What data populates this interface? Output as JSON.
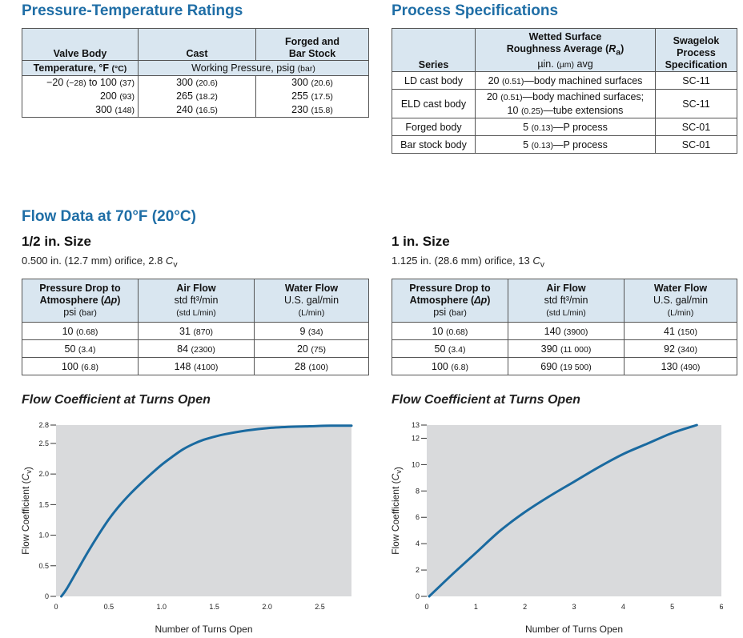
{
  "pt": {
    "title": "Pressure-Temperature Ratings",
    "h_valve": "Valve Body",
    "h_cast": "Cast",
    "h_forged1": "Forged and",
    "h_forged2": "Bar Stock",
    "h_temp": "Temperature, °F ",
    "h_temp_unit": "(°C)",
    "h_wp": "Working Pressure, psig ",
    "h_wp_unit": "(bar)",
    "rows": [
      {
        "t": "−20 ",
        "tu": "(−28)",
        "t2": " to 100 ",
        "t2u": "(37)",
        "c": "300 ",
        "cu": "(20.6)",
        "f": "300 ",
        "fu": "(20.6)"
      },
      {
        "t": "200 ",
        "tu": "(93)",
        "c": "265 ",
        "cu": "(18.2)",
        "f": "255 ",
        "fu": "(17.5)"
      },
      {
        "t": "300 ",
        "tu": "(148)",
        "c": "240 ",
        "cu": "(16.5)",
        "f": "230 ",
        "fu": "(15.8)"
      }
    ]
  },
  "ps": {
    "title": "Process Specifications",
    "h_series": "Series",
    "h_wetted1": "Wetted Surface",
    "h_wetted2a": "Roughness Average (",
    "h_wetted2b": "R",
    "h_wetted2c": "a",
    "h_wetted2d": ")",
    "h_wetted3a": "µin. ",
    "h_wetted3b": "(µm)",
    "h_wetted3c": " avg",
    "h_sw1": "Swagelok",
    "h_sw2": "Process",
    "h_sw3": "Specification",
    "rows": [
      {
        "series": "LD cast body",
        "a": "20 ",
        "au": "(0.51)",
        "b": "—body machined surfaces",
        "spec": "SC-11"
      },
      {
        "series": "ELD cast body",
        "a": "20 ",
        "au": "(0.51)",
        "b": "—body machined surfaces;",
        "c": "10 ",
        "cu": "(0.25)",
        "d": "—tube extensions",
        "spec": "SC-11"
      },
      {
        "series": "Forged body",
        "a": "5 ",
        "au": "(0.13)",
        "b": "—P process",
        "spec": "SC-01"
      },
      {
        "series": "Bar stock body",
        "a": "5 ",
        "au": "(0.13)",
        "b": "—P process",
        "spec": "SC-01"
      }
    ]
  },
  "flow": {
    "title": "Flow Data at 70°F (20°C)",
    "h_pd1": "Pressure Drop to",
    "h_pd2a": "Atmosphere (",
    "h_pd2b": "Δp",
    "h_pd2c": ")",
    "h_pd3a": "psi ",
    "h_pd3b": "(bar)",
    "h_air1": "Air Flow",
    "h_air2": "std ft³/min",
    "h_air3": "(std L/min)",
    "h_water1": "Water Flow",
    "h_water2": "U.S. gal/min",
    "h_water3": "(L/min)",
    "half": {
      "size": "1/2 in. Size",
      "orifice_a": "0.500 in. (12.7 mm) orifice, 2.8 ",
      "orifice_b": "C",
      "orifice_c": "v",
      "rows": [
        {
          "p": "10 ",
          "pu": "(0.68)",
          "a": "31 ",
          "au": "(870)",
          "w": "9 ",
          "wu": "(34)"
        },
        {
          "p": "50 ",
          "pu": "(3.4)",
          "a": "84 ",
          "au": "(2300)",
          "w": "20 ",
          "wu": "(75)"
        },
        {
          "p": "100 ",
          "pu": "(6.8)",
          "a": "148 ",
          "au": "(4100)",
          "w": "28 ",
          "wu": "(100)"
        }
      ]
    },
    "one": {
      "size": "1 in. Size",
      "orifice_a": "1.125 in. (28.6 mm) orifice, 13 ",
      "orifice_b": "C",
      "orifice_c": "v",
      "rows": [
        {
          "p": "10 ",
          "pu": "(0.68)",
          "a": "140 ",
          "au": "(3900)",
          "w": "41 ",
          "wu": "(150)"
        },
        {
          "p": "50 ",
          "pu": "(3.4)",
          "a": "390 ",
          "au": "(11 000)",
          "w": "92 ",
          "wu": "(340)"
        },
        {
          "p": "100 ",
          "pu": "(6.8)",
          "a": "690 ",
          "au": "(19 500)",
          "w": "130 ",
          "wu": "(490)"
        }
      ]
    }
  },
  "chart_data": [
    {
      "type": "line",
      "title": "Flow Coefficient at Turns Open",
      "xlabel": "Number of Turns Open",
      "ylabel_a": "Flow Coefficient (",
      "ylabel_b": "C",
      "ylabel_c": "v",
      "ylabel_d": ")",
      "xlim": [
        0,
        2.8
      ],
      "ylim": [
        0,
        2.8
      ],
      "xticks": [
        0,
        0.5,
        1.0,
        1.5,
        2.0,
        2.5
      ],
      "xtick_labels": [
        "0",
        "0.5",
        "1.0",
        "1.5",
        "2.0",
        "2.5"
      ],
      "yticks": [
        0,
        0.5,
        1.0,
        1.5,
        2.0,
        2.5,
        2.8
      ],
      "ytick_labels": [
        "0",
        "0.5",
        "1.0",
        "1.5",
        "2.0",
        "2.5",
        "2.8"
      ],
      "color": "#1a6aa0",
      "series": [
        {
          "name": "1/2 in.",
          "x": [
            0.05,
            0.1,
            0.2,
            0.3,
            0.4,
            0.5,
            0.6,
            0.7,
            0.8,
            0.9,
            1.0,
            1.1,
            1.2,
            1.3,
            1.4,
            1.5,
            1.6,
            1.8,
            2.0,
            2.2,
            2.4,
            2.6,
            2.8
          ],
          "y": [
            0,
            0.12,
            0.42,
            0.72,
            1.0,
            1.26,
            1.48,
            1.67,
            1.84,
            2.0,
            2.15,
            2.28,
            2.4,
            2.49,
            2.56,
            2.61,
            2.65,
            2.71,
            2.75,
            2.77,
            2.78,
            2.79,
            2.79
          ]
        }
      ]
    },
    {
      "type": "line",
      "title": "Flow Coefficient at Turns Open",
      "xlabel": "Number of Turns Open",
      "ylabel_a": "Flow Coefficient (",
      "ylabel_b": "C",
      "ylabel_c": "v",
      "ylabel_d": ")",
      "xlim": [
        0,
        6
      ],
      "ylim": [
        0,
        13
      ],
      "xticks": [
        0,
        1,
        2,
        3,
        4,
        5,
        6
      ],
      "xtick_labels": [
        "0",
        "1",
        "2",
        "3",
        "4",
        "5",
        "6"
      ],
      "yticks": [
        0,
        2,
        4,
        6,
        8,
        10,
        12,
        13
      ],
      "ytick_labels": [
        "0",
        "2",
        "4",
        "6",
        "8",
        "10",
        "12",
        "13"
      ],
      "color": "#1a6aa0",
      "series": [
        {
          "name": "1 in.",
          "x": [
            0.05,
            0.5,
            1.0,
            1.5,
            2.0,
            2.5,
            3.0,
            3.5,
            4.0,
            4.5,
            5.0,
            5.5
          ],
          "y": [
            0,
            1.6,
            3.3,
            5.0,
            6.4,
            7.6,
            8.7,
            9.8,
            10.8,
            11.6,
            12.4,
            13.0
          ]
        }
      ]
    }
  ]
}
